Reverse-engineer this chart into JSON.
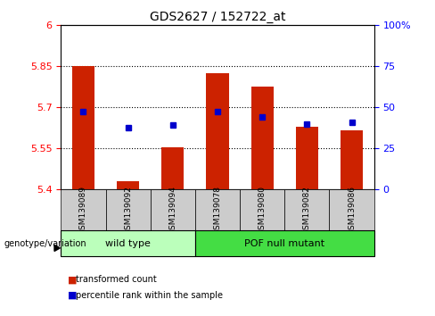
{
  "title": "GDS2627 / 152722_at",
  "samples": [
    "GSM139089",
    "GSM139092",
    "GSM139094",
    "GSM139078",
    "GSM139080",
    "GSM139082",
    "GSM139086"
  ],
  "bar_values": [
    5.85,
    5.43,
    5.555,
    5.825,
    5.775,
    5.63,
    5.615
  ],
  "bar_bottom": 5.4,
  "percentile_values": [
    5.685,
    5.625,
    5.635,
    5.685,
    5.665,
    5.64,
    5.645
  ],
  "bar_color": "#CC2200",
  "dot_color": "#0000CC",
  "ylim_left": [
    5.4,
    6.0
  ],
  "ylim_right": [
    0,
    100
  ],
  "yticks_left": [
    5.4,
    5.55,
    5.7,
    5.85,
    6.0
  ],
  "yticks_right": [
    0,
    25,
    50,
    75,
    100
  ],
  "ytick_labels_left": [
    "5.4",
    "5.55",
    "5.7",
    "5.85",
    "6"
  ],
  "ytick_labels_right": [
    "0",
    "25",
    "50",
    "75",
    "100%"
  ],
  "hlines": [
    5.55,
    5.7,
    5.85
  ],
  "groups": [
    {
      "label": "wild type",
      "indices": [
        0,
        1,
        2
      ],
      "color": "#BBFFBB"
    },
    {
      "label": "POF null mutant",
      "indices": [
        3,
        4,
        5,
        6
      ],
      "color": "#44DD44"
    }
  ],
  "genotype_label": "genotype/variation",
  "legend_items": [
    {
      "label": "transformed count",
      "color": "#CC2200"
    },
    {
      "label": "percentile rank within the sample",
      "color": "#0000CC"
    }
  ],
  "bar_width": 0.5,
  "bg_color_xtick": "#CCCCCC"
}
